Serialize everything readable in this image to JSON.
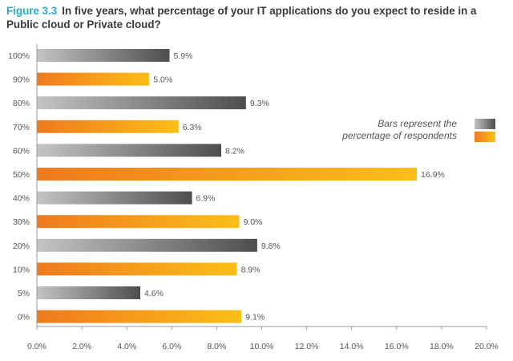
{
  "title": {
    "figure_label": "Figure 3.3",
    "text": "In five years, what percentage of your IT applications do you expect to reside in a Public cloud or Private cloud?"
  },
  "legend": {
    "line1": "Bars represent the",
    "line2": "percentage of respondents"
  },
  "colors": {
    "gray_gradient": [
      "#c4c4c4",
      "#4e4e4e"
    ],
    "orange_gradient": [
      "#ee7a1e",
      "#fbbf18"
    ],
    "figure_label": "#2aa7c9"
  },
  "chart_data": {
    "type": "bar",
    "orientation": "horizontal",
    "title": "In five years, what percentage of your IT applications do you expect to reside in a Public cloud or Private cloud?",
    "categories": [
      "100%",
      "90%",
      "80%",
      "70%",
      "60%",
      "50%",
      "40%",
      "30%",
      "20%",
      "10%",
      "5%",
      "0%"
    ],
    "values": [
      5.9,
      5.0,
      9.3,
      6.3,
      8.2,
      16.9,
      6.9,
      9.0,
      9.8,
      8.9,
      4.6,
      9.1
    ],
    "value_labels": [
      "5.9%",
      "5.0%",
      "9.3%",
      "6.3%",
      "8.2%",
      "16.9%",
      "6.9%",
      "9.0%",
      "9.8%",
      "8.9%",
      "4.6%",
      "9.1%"
    ],
    "bar_colors": [
      "gray",
      "orange",
      "gray",
      "orange",
      "gray",
      "orange",
      "gray",
      "orange",
      "gray",
      "orange",
      "gray",
      "orange"
    ],
    "xlim": [
      0,
      20
    ],
    "x_ticks": [
      "0.0%",
      "2.0%",
      "4.0%",
      "6.0%",
      "8.0%",
      "10.0%",
      "12.0%",
      "14.0%",
      "16.0%",
      "18.0%",
      "20.0%"
    ],
    "grid": false,
    "legend_position": "right"
  }
}
